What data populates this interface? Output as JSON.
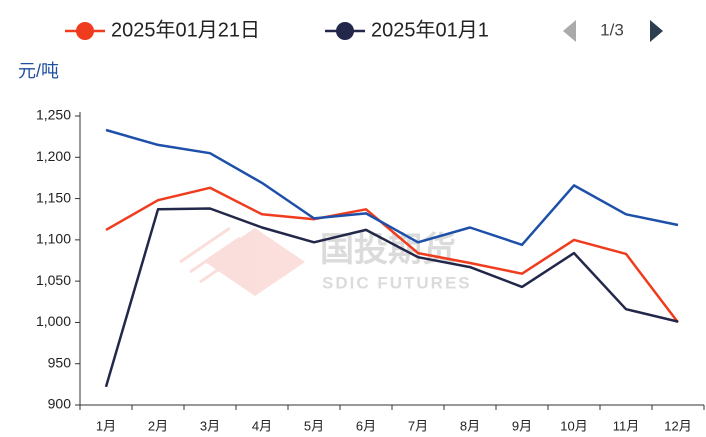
{
  "chart_data": {
    "type": "line",
    "unit_label": "元/吨",
    "legend_page": "1/3",
    "watermark": [
      "国投期货",
      "SDIC FUTURES"
    ],
    "categories": [
      "1月",
      "2月",
      "3月",
      "4月",
      "5月",
      "6月",
      "7月",
      "8月",
      "9月",
      "10月",
      "11月",
      "12月"
    ],
    "series": [
      {
        "name": "2025年01月21日",
        "color": "#f03c1e",
        "values": [
          1112,
          1148,
          1163,
          1131,
          1125,
          1137,
          1084,
          1072,
          1059,
          1100,
          1083,
          1000
        ]
      },
      {
        "name": "2025年01月1",
        "color": "#23284a",
        "values": [
          922,
          1137,
          1138,
          1115,
          1097,
          1112,
          1079,
          1067,
          1043,
          1084,
          1016,
          1001
        ]
      },
      {
        "color": "#1e50aa",
        "values": [
          1233,
          1215,
          1205,
          1169,
          1126,
          1132,
          1097,
          1115,
          1094,
          1166,
          1131,
          1118
        ]
      }
    ],
    "ylim": [
      900,
      1250
    ],
    "yticks": [
      900,
      950,
      {
        "value": 1000,
        "label": "1,000"
      },
      {
        "value": 1050,
        "label": "1,050"
      },
      {
        "value": 1100,
        "label": "1,100"
      },
      {
        "value": 1150,
        "label": "1,150"
      },
      {
        "value": 1200,
        "label": "1,200"
      },
      {
        "value": 1250,
        "label": "1,250"
      }
    ]
  }
}
